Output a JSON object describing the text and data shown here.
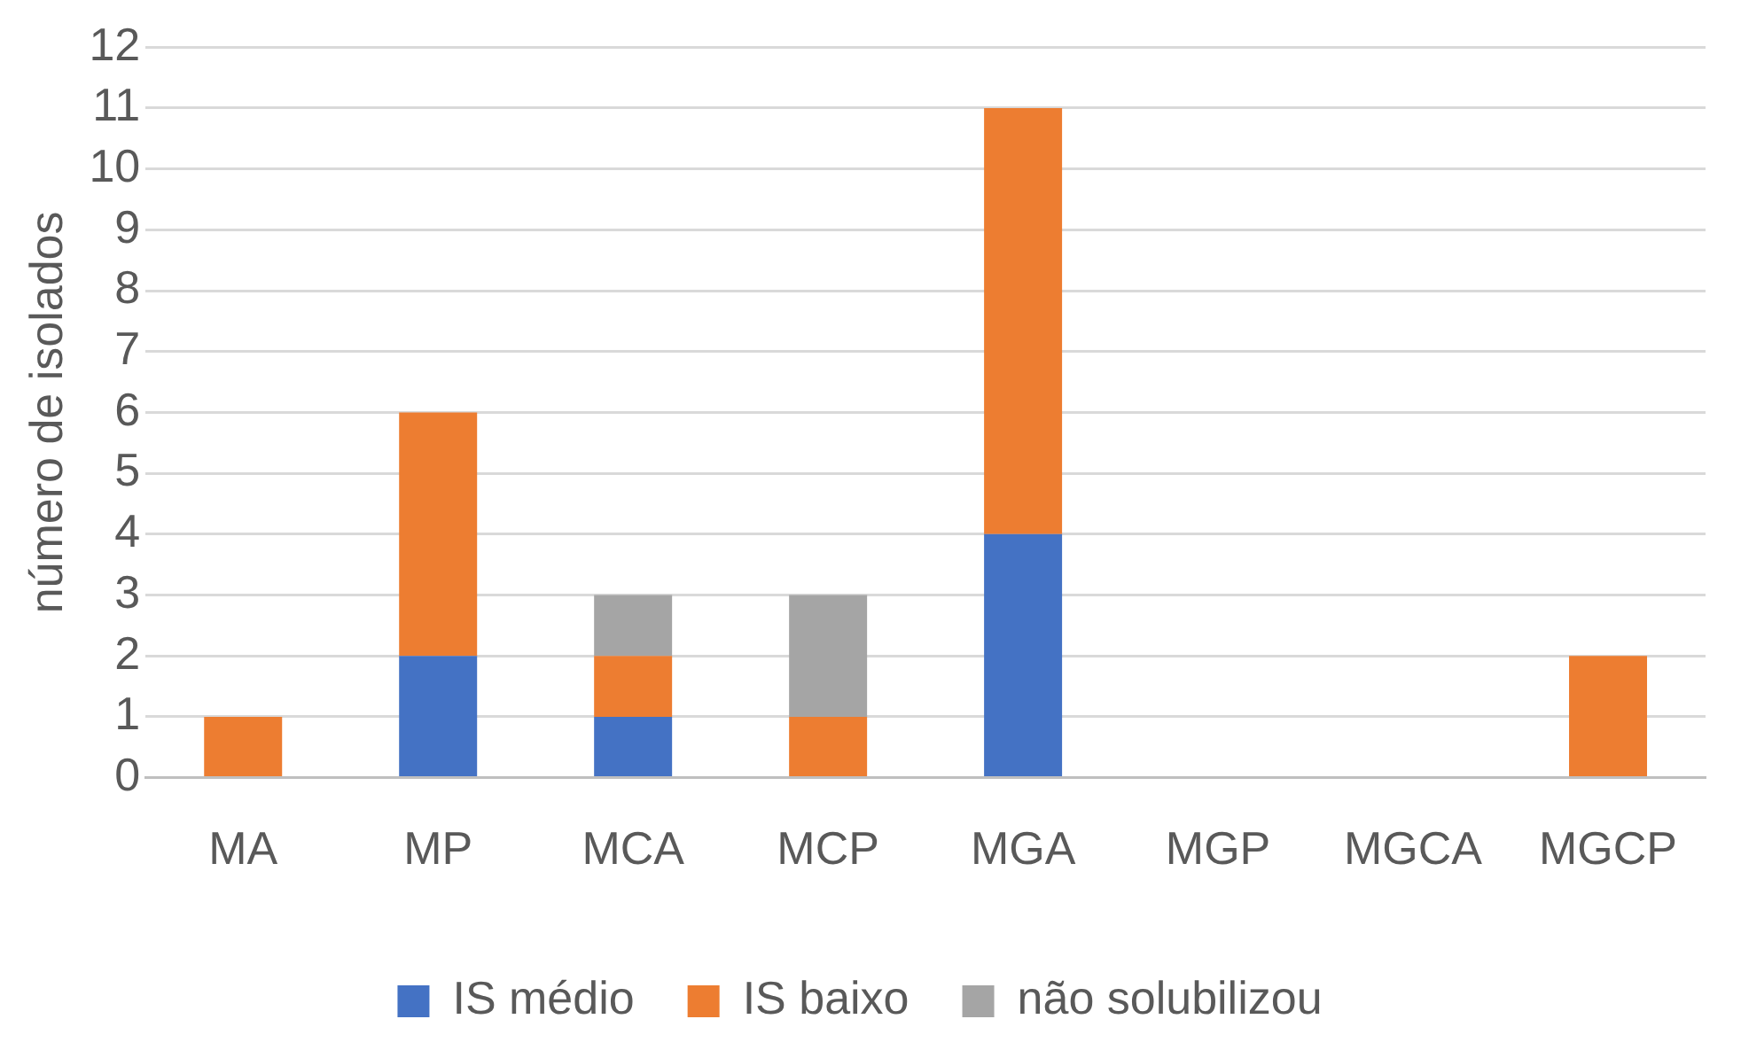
{
  "chart_data": {
    "type": "bar",
    "stacked": true,
    "ylabel": "número de isolados",
    "categories": [
      "MA",
      "MP",
      "MCA",
      "MCP",
      "MGA",
      "MGP",
      "MGCA",
      "MGCP"
    ],
    "series": [
      {
        "name": "IS médio",
        "color": "#4472c4",
        "values": [
          0,
          2,
          1,
          0,
          4,
          0,
          0,
          0
        ]
      },
      {
        "name": "IS baixo",
        "color": "#ed7d31",
        "values": [
          1,
          4,
          1,
          1,
          7,
          0,
          0,
          2
        ]
      },
      {
        "name": "não solubilizou",
        "color": "#a5a5a5",
        "values": [
          0,
          0,
          1,
          2,
          0,
          0,
          0,
          0
        ]
      }
    ],
    "ylim": [
      0,
      12
    ],
    "yticks": [
      0,
      1,
      2,
      3,
      4,
      5,
      6,
      7,
      8,
      9,
      10,
      11,
      12
    ],
    "grid": "y",
    "legend": "bottom"
  }
}
